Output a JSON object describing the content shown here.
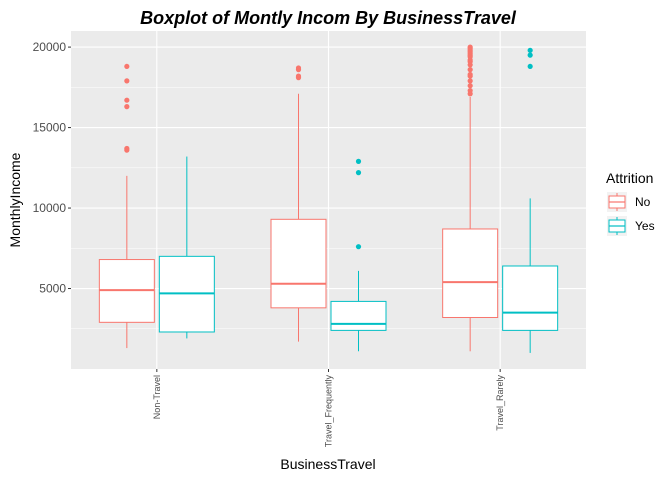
{
  "chart_data": {
    "type": "boxplot",
    "title": "Boxplot of Montly Incom By  BusinessTravel",
    "xlabel": "BusinessTravel",
    "ylabel": "MonthlyIncome",
    "categories": [
      "Non-Travel",
      "Travel_Frequently",
      "Travel_Rarely"
    ],
    "ylim": [
      0,
      21000
    ],
    "yticks": [
      5000,
      10000,
      15000,
      20000
    ],
    "grid": true,
    "legend": {
      "title": "Attrition",
      "placement": "right"
    },
    "series": [
      {
        "name": "No",
        "color": "#F8766D",
        "boxes": [
          {
            "category": "Non-Travel",
            "min": 1300,
            "q1": 2900,
            "median": 4900,
            "q3": 6800,
            "max": 12000,
            "outliers": [
              13600,
              13700,
              16300,
              16700,
              17900,
              18800
            ]
          },
          {
            "category": "Travel_Frequently",
            "min": 1700,
            "q1": 3800,
            "median": 5300,
            "q3": 9300,
            "max": 17100,
            "outliers": [
              18100,
              18200,
              18600,
              18700
            ]
          },
          {
            "category": "Travel_Rarely",
            "min": 1100,
            "q1": 3200,
            "median": 5400,
            "q3": 8700,
            "max": 16900,
            "outliers": [
              17100,
              17300,
              17600,
              17900,
              18200,
              18300,
              18600,
              18900,
              19100,
              19200,
              19400,
              19500,
              19600,
              19700,
              19800,
              19900,
              20000
            ]
          }
        ]
      },
      {
        "name": "Yes",
        "color": "#00BFC4",
        "boxes": [
          {
            "category": "Non-Travel",
            "min": 1900,
            "q1": 2300,
            "median": 4700,
            "q3": 7000,
            "max": 13200,
            "outliers": []
          },
          {
            "category": "Travel_Frequently",
            "min": 1100,
            "q1": 2400,
            "median": 2800,
            "q3": 4200,
            "max": 6100,
            "outliers": [
              7600,
              12200,
              12900
            ]
          },
          {
            "category": "Travel_Rarely",
            "min": 1000,
            "q1": 2400,
            "median": 3500,
            "q3": 6400,
            "max": 10600,
            "outliers": [
              18800,
              19500,
              19800
            ]
          }
        ]
      }
    ]
  }
}
